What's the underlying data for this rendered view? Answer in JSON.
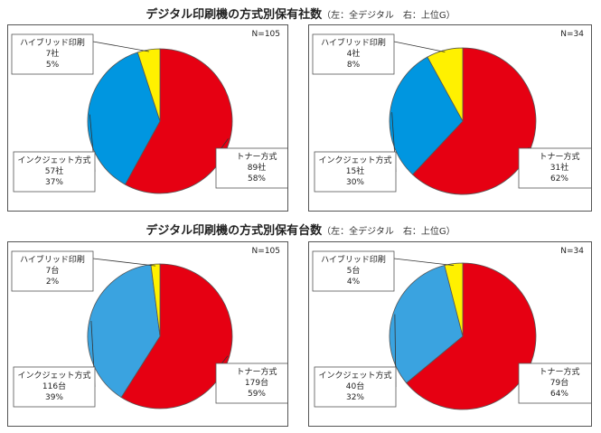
{
  "titles": [
    {
      "main": "デジタル印刷機の方式別保有社数",
      "sub": "（左：全デジタル　右：上位G）"
    },
    {
      "main": "デジタル印刷機の方式別保有台数",
      "sub": "（左：全デジタル　右：上位G）"
    }
  ],
  "colors": {
    "toner": "#e60012",
    "inkjet": "#0096e0",
    "inkjet_units": "#3aa3e0",
    "hybrid": "#fff100",
    "outline": "#555555"
  },
  "chart_data": [
    {
      "type": "pie",
      "n_label": "N=105",
      "slices": [
        {
          "name": "トナー方式",
          "count": "89社",
          "pct": "58%",
          "value": 58,
          "color": "#e60012"
        },
        {
          "name": "インクジェット方式",
          "count": "57社",
          "pct": "37%",
          "value": 37,
          "color": "#0096e0"
        },
        {
          "name": "ハイブリッド印刷",
          "count": "7社",
          "pct": "5%",
          "value": 5,
          "color": "#fff100"
        }
      ]
    },
    {
      "type": "pie",
      "n_label": "N=34",
      "slices": [
        {
          "name": "トナー方式",
          "count": "31社",
          "pct": "62%",
          "value": 62,
          "color": "#e60012"
        },
        {
          "name": "インクジェット方式",
          "count": "15社",
          "pct": "30%",
          "value": 30,
          "color": "#0096e0"
        },
        {
          "name": "ハイブリッド印刷",
          "count": "4社",
          "pct": "8%",
          "value": 8,
          "color": "#fff100"
        }
      ]
    },
    {
      "type": "pie",
      "n_label": "N=105",
      "slices": [
        {
          "name": "トナー方式",
          "count": "179台",
          "pct": "59%",
          "value": 59,
          "color": "#e60012"
        },
        {
          "name": "インクジェット方式",
          "count": "116台",
          "pct": "39%",
          "value": 39,
          "color": "#3aa3e0"
        },
        {
          "name": "ハイブリッド印刷",
          "count": "7台",
          "pct": "2%",
          "value": 2,
          "color": "#fff100"
        }
      ]
    },
    {
      "type": "pie",
      "n_label": "N=34",
      "slices": [
        {
          "name": "トナー方式",
          "count": "79台",
          "pct": "64%",
          "value": 64,
          "color": "#e60012"
        },
        {
          "name": "インクジェット方式",
          "count": "40台",
          "pct": "32%",
          "value": 32,
          "color": "#3aa3e0"
        },
        {
          "name": "ハイブリッド印刷",
          "count": "5台",
          "pct": "4%",
          "value": 4,
          "color": "#fff100"
        }
      ]
    }
  ]
}
